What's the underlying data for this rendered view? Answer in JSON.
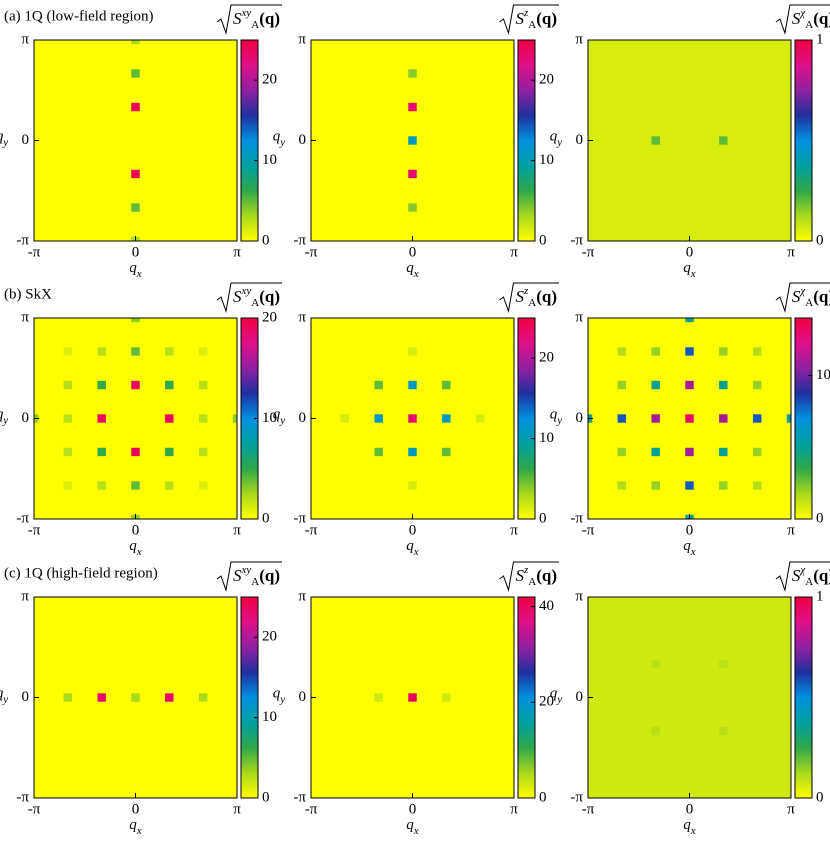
{
  "chart_data": [
    {
      "type": "heatmap",
      "title": "(a) 1Q (low-field region)",
      "colorbar_label": {
        "symbol": "S",
        "sub": "A",
        "sup": "xy",
        "arg": "(q)"
      },
      "xlabel": {
        "symbol": "q",
        "sub": "x"
      },
      "ylabel": {
        "symbol": "q",
        "sub": "y"
      },
      "xlim": [
        -1,
        1
      ],
      "ylim": [
        -1,
        1
      ],
      "xticks": [
        {
          "value": -1,
          "label": "-π"
        },
        0,
        {
          "value": 1,
          "label": "π"
        }
      ],
      "yticks": [
        {
          "value": -1,
          "label": "-π"
        },
        0,
        {
          "value": 1,
          "label": "π"
        }
      ],
      "clim": [
        0,
        25
      ],
      "cticks": [
        0,
        10,
        20
      ],
      "colormap": [
        "#ffff00",
        "#a8d81c",
        "#2fa84a",
        "#00a0a0",
        "#0090e0",
        "#2030a0",
        "#9020a0",
        "#e0108a",
        "#f00040"
      ],
      "background": 0,
      "points": {
        "x": [
          0,
          0,
          0,
          0,
          0,
          0
        ],
        "y": [
          1,
          0.667,
          0.333,
          -0.333,
          -0.667,
          -1
        ],
        "values": [
          3,
          5,
          24,
          24,
          5,
          3
        ]
      }
    },
    {
      "type": "heatmap",
      "colorbar_label": {
        "symbol": "S",
        "sub": "A",
        "sup": "z",
        "arg": "(q)"
      },
      "xlabel": {
        "symbol": "q",
        "sub": "x"
      },
      "ylabel": {
        "symbol": "q",
        "sub": "y"
      },
      "xlim": [
        -1,
        1
      ],
      "ylim": [
        -1,
        1
      ],
      "xticks": [
        {
          "value": -1,
          "label": "-π"
        },
        0,
        {
          "value": 1,
          "label": "π"
        }
      ],
      "yticks": [
        {
          "value": -1,
          "label": "-π"
        },
        0,
        {
          "value": 1,
          "label": "π"
        }
      ],
      "clim": [
        0,
        25
      ],
      "cticks": [
        0,
        10,
        20
      ],
      "colormap": [
        "#ffff00",
        "#a8d81c",
        "#2fa84a",
        "#00a0a0",
        "#0090e0",
        "#2030a0",
        "#9020a0",
        "#e0108a",
        "#f00040"
      ],
      "background": 0,
      "points": {
        "x": [
          0,
          0,
          0,
          0,
          0
        ],
        "y": [
          0.667,
          0.333,
          0,
          -0.333,
          -0.667
        ],
        "values": [
          4,
          23,
          11,
          23,
          4
        ]
      }
    },
    {
      "type": "heatmap",
      "colorbar_label": {
        "symbol": "S",
        "sub": "A",
        "sup": "χ",
        "arg": "(q)"
      },
      "xlabel": {
        "symbol": "q",
        "sub": "x"
      },
      "ylabel": {
        "symbol": "q",
        "sub": "y"
      },
      "xlim": [
        -1,
        1
      ],
      "ylim": [
        -1,
        1
      ],
      "xticks": [
        {
          "value": -1,
          "label": "-π"
        },
        0,
        {
          "value": 1,
          "label": "π"
        }
      ],
      "yticks": [
        {
          "value": -1,
          "label": "-π"
        },
        0,
        {
          "value": 1,
          "label": "π"
        }
      ],
      "clim": [
        0,
        1
      ],
      "cticks": [
        0,
        1
      ],
      "colormap": [
        "#ffff00",
        "#a8d81c",
        "#2fa84a",
        "#00a0a0",
        "#0090e0",
        "#2030a0",
        "#9020a0",
        "#e0108a",
        "#f00040"
      ],
      "background": 0.06,
      "points": {
        "x": [
          -0.333,
          0.333
        ],
        "y": [
          0,
          0
        ],
        "values": [
          0.2,
          0.2
        ]
      }
    },
    {
      "type": "heatmap",
      "title": "(b) SkX",
      "colorbar_label": {
        "symbol": "S",
        "sub": "A",
        "sup": "xy",
        "arg": "(q)"
      },
      "xlabel": {
        "symbol": "q",
        "sub": "x"
      },
      "ylabel": {
        "symbol": "q",
        "sub": "y"
      },
      "xlim": [
        -1,
        1
      ],
      "ylim": [
        -1,
        1
      ],
      "xticks": [
        {
          "value": -1,
          "label": "-π"
        },
        0,
        {
          "value": 1,
          "label": "π"
        }
      ],
      "yticks": [
        {
          "value": -1,
          "label": "-π"
        },
        0,
        {
          "value": 1,
          "label": "π"
        }
      ],
      "clim": [
        0,
        20
      ],
      "cticks": [
        0,
        10,
        20
      ],
      "colormap": [
        "#ffff00",
        "#a8d81c",
        "#2fa84a",
        "#00a0a0",
        "#0090e0",
        "#2030a0",
        "#9020a0",
        "#e0108a",
        "#f00040"
      ],
      "background": 0,
      "points": {
        "x": [
          0,
          0,
          -0.333,
          0.333,
          -0.333,
          0.333,
          -0.333,
          0.333,
          0,
          0,
          0,
          0,
          -1,
          1,
          -0.667,
          0.667,
          -0.667,
          0.667,
          -0.667,
          0.667,
          -0.333,
          0.333,
          -0.333,
          0.333,
          -0.667,
          0.667,
          -0.667,
          0.667
        ],
        "y": [
          0.333,
          -0.333,
          0,
          0,
          0.333,
          0.333,
          -0.333,
          -0.333,
          0.667,
          -0.667,
          1,
          -1,
          0,
          0,
          0,
          0,
          0.333,
          0.333,
          -0.333,
          -0.333,
          0.667,
          0.667,
          -0.667,
          -0.667,
          0.667,
          0.667,
          -0.667,
          -0.667
        ],
        "values": [
          19,
          19,
          19,
          19,
          5,
          5,
          5,
          5,
          4,
          4,
          3,
          3,
          3,
          3,
          2,
          2,
          2,
          2,
          2,
          2,
          2,
          2,
          2,
          2,
          1,
          1,
          1,
          1
        ]
      }
    },
    {
      "type": "heatmap",
      "colorbar_label": {
        "symbol": "S",
        "sub": "A",
        "sup": "z",
        "arg": "(q)"
      },
      "xlabel": {
        "symbol": "q",
        "sub": "x"
      },
      "ylabel": {
        "symbol": "q",
        "sub": "y"
      },
      "xlim": [
        -1,
        1
      ],
      "ylim": [
        -1,
        1
      ],
      "xticks": [
        {
          "value": -1,
          "label": "-π"
        },
        0,
        {
          "value": 1,
          "label": "π"
        }
      ],
      "yticks": [
        {
          "value": -1,
          "label": "-π"
        },
        0,
        {
          "value": 1,
          "label": "π"
        }
      ],
      "clim": [
        0,
        25
      ],
      "cticks": [
        0,
        10,
        20
      ],
      "colormap": [
        "#ffff00",
        "#a8d81c",
        "#2fa84a",
        "#00a0a0",
        "#0090e0",
        "#2030a0",
        "#9020a0",
        "#e0108a",
        "#f00040"
      ],
      "background": 0,
      "points": {
        "x": [
          0,
          -0.333,
          0.333,
          0,
          0,
          -0.333,
          0.333,
          -0.333,
          0.333,
          0,
          0,
          -0.667,
          0.667
        ],
        "y": [
          0,
          0,
          0,
          0.333,
          -0.333,
          0.333,
          0.333,
          -0.333,
          -0.333,
          0.667,
          -0.667,
          0,
          0
        ],
        "values": [
          23,
          11,
          11,
          11,
          11,
          5,
          5,
          5,
          5,
          1.5,
          1.5,
          1.5,
          1.5
        ]
      }
    },
    {
      "type": "heatmap",
      "colorbar_label": {
        "symbol": "S",
        "sub": "A",
        "sup": "χ",
        "arg": "(q)"
      },
      "xlabel": {
        "symbol": "q",
        "sub": "x"
      },
      "ylabel": {
        "symbol": "q",
        "sub": "y"
      },
      "xlim": [
        -1,
        1
      ],
      "ylim": [
        -1,
        1
      ],
      "xticks": [
        {
          "value": -1,
          "label": "-π"
        },
        0,
        {
          "value": 1,
          "label": "π"
        }
      ],
      "yticks": [
        {
          "value": -1,
          "label": "-π"
        },
        0,
        {
          "value": 1,
          "label": "π"
        }
      ],
      "clim": [
        0,
        14
      ],
      "cticks": [
        0,
        10
      ],
      "colormap": [
        "#ffff00",
        "#a8d81c",
        "#2fa84a",
        "#00a0a0",
        "#0090e0",
        "#2030a0",
        "#9020a0",
        "#e0108a",
        "#f00040"
      ],
      "background": 0,
      "points": {
        "x": [
          0,
          -0.333,
          0.333,
          0,
          0,
          -0.333,
          0.333,
          -0.333,
          0.333,
          0,
          0,
          -0.667,
          0.667,
          0,
          0,
          -1,
          1,
          -0.667,
          0.667,
          -0.667,
          0.667,
          -0.333,
          0.333,
          -0.333,
          0.333,
          -0.667,
          0.667,
          -0.667,
          0.667
        ],
        "y": [
          0,
          0,
          0,
          0.333,
          -0.333,
          0.333,
          0.333,
          -0.333,
          -0.333,
          0.667,
          -0.667,
          0,
          0,
          1,
          -1,
          0,
          0,
          0.333,
          0.333,
          -0.333,
          -0.333,
          0.667,
          0.667,
          -0.667,
          -0.667,
          0.667,
          0.667,
          -0.667,
          -0.667
        ],
        "values": [
          13,
          11,
          11,
          11,
          11,
          5,
          5,
          5,
          5,
          8,
          8,
          8,
          8,
          5,
          5,
          5,
          5,
          2,
          2,
          2,
          2,
          2,
          2,
          2,
          2,
          1.5,
          1.5,
          1.5,
          1.5
        ]
      }
    },
    {
      "type": "heatmap",
      "title": "(c) 1Q (high-field region)",
      "colorbar_label": {
        "symbol": "S",
        "sub": "A",
        "sup": "xy",
        "arg": "(q)"
      },
      "xlabel": {
        "symbol": "q",
        "sub": "x"
      },
      "ylabel": {
        "symbol": "q",
        "sub": "y"
      },
      "xlim": [
        -1,
        1
      ],
      "ylim": [
        -1,
        1
      ],
      "xticks": [
        {
          "value": -1,
          "label": "-π"
        },
        0,
        {
          "value": 1,
          "label": "π"
        }
      ],
      "yticks": [
        {
          "value": -1,
          "label": "-π"
        },
        0,
        {
          "value": 1,
          "label": "π"
        }
      ],
      "clim": [
        0,
        25
      ],
      "cticks": [
        0,
        10,
        20
      ],
      "colormap": [
        "#ffff00",
        "#a8d81c",
        "#2fa84a",
        "#00a0a0",
        "#0090e0",
        "#2030a0",
        "#9020a0",
        "#e0108a",
        "#f00040"
      ],
      "background": 0,
      "points": {
        "x": [
          -0.667,
          -0.333,
          0,
          0.333,
          0.667
        ],
        "y": [
          0,
          0,
          0,
          0,
          0
        ],
        "values": [
          3,
          23,
          3,
          23,
          3
        ]
      }
    },
    {
      "type": "heatmap",
      "colorbar_label": {
        "symbol": "S",
        "sub": "A",
        "sup": "z",
        "arg": "(q)"
      },
      "xlabel": {
        "symbol": "q",
        "sub": "x"
      },
      "ylabel": {
        "symbol": "q",
        "sub": "y"
      },
      "xlim": [
        -1,
        1
      ],
      "ylim": [
        -1,
        1
      ],
      "xticks": [
        {
          "value": -1,
          "label": "-π"
        },
        0,
        {
          "value": 1,
          "label": "π"
        }
      ],
      "yticks": [
        {
          "value": -1,
          "label": "-π"
        },
        0,
        {
          "value": 1,
          "label": "π"
        }
      ],
      "clim": [
        0,
        42
      ],
      "cticks": [
        0,
        20,
        40
      ],
      "colormap": [
        "#ffff00",
        "#a8d81c",
        "#2fa84a",
        "#00a0a0",
        "#0090e0",
        "#2030a0",
        "#9020a0",
        "#e0108a",
        "#f00040"
      ],
      "background": 0,
      "points": {
        "x": [
          -0.333,
          0,
          0.333
        ],
        "y": [
          0,
          0,
          0
        ],
        "values": [
          3,
          40,
          3
        ]
      }
    },
    {
      "type": "heatmap",
      "colorbar_label": {
        "symbol": "S",
        "sub": "A",
        "sup": "χ",
        "arg": "(q)"
      },
      "xlabel": {
        "symbol": "q",
        "sub": "x"
      },
      "ylabel": {
        "symbol": "q",
        "sub": "y"
      },
      "xlim": [
        -1,
        1
      ],
      "ylim": [
        -1,
        1
      ],
      "xticks": [
        {
          "value": -1,
          "label": "-π"
        },
        0,
        {
          "value": 1,
          "label": "π"
        }
      ],
      "yticks": [
        {
          "value": -1,
          "label": "-π"
        },
        0,
        {
          "value": 1,
          "label": "π"
        }
      ],
      "clim": [
        0,
        1
      ],
      "cticks": [
        0,
        1
      ],
      "colormap": [
        "#ffff00",
        "#a8d81c",
        "#2fa84a",
        "#00a0a0",
        "#0090e0",
        "#2030a0",
        "#9020a0",
        "#e0108a",
        "#f00040"
      ],
      "background": 0.07,
      "points": {
        "x": [
          -0.333,
          0.333,
          -0.333,
          0.333
        ],
        "y": [
          0.333,
          0.333,
          -0.333,
          -0.333
        ],
        "values": [
          0.1,
          0.1,
          0.1,
          0.1
        ]
      }
    }
  ]
}
